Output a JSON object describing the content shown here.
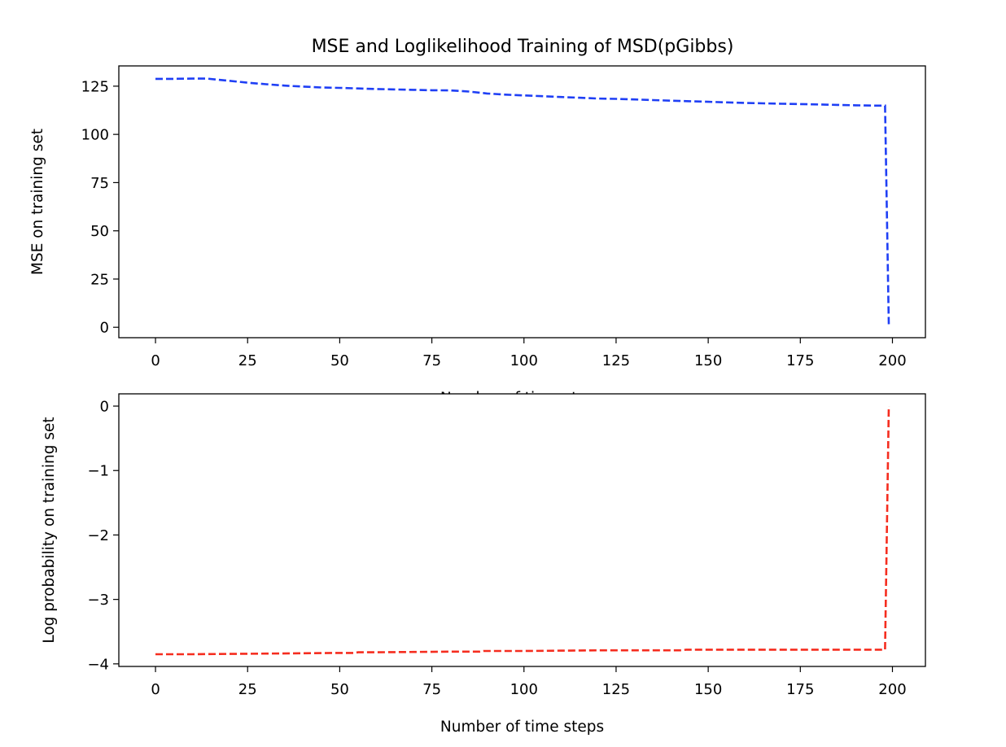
{
  "title": "MSE and Loglikelihood Training of MSD(pGibbs)",
  "chart_data": [
    {
      "type": "line",
      "xlabel": "Number of time steps",
      "ylabel": "MSE on training set",
      "xlim": [
        -9.95,
        208.95
      ],
      "ylim": [
        -5.4,
        135.5
      ],
      "xticks": [
        0,
        25,
        50,
        75,
        100,
        125,
        150,
        175,
        200
      ],
      "yticks": [
        0,
        25,
        50,
        75,
        100,
        125
      ],
      "grid": false,
      "series": [
        {
          "color": "#1f3ff5",
          "style": "dashed",
          "x": [
            0,
            5,
            10,
            14,
            20,
            25,
            30,
            35,
            40,
            45,
            50,
            55,
            60,
            65,
            70,
            75,
            80,
            85,
            90,
            95,
            100,
            105,
            110,
            115,
            120,
            125,
            130,
            135,
            140,
            145,
            150,
            155,
            160,
            165,
            170,
            175,
            180,
            185,
            190,
            195,
            198,
            199
          ],
          "y": [
            128.8,
            128.8,
            128.9,
            128.9,
            127.8,
            126.8,
            126.0,
            125.3,
            124.8,
            124.3,
            124.1,
            123.8,
            123.5,
            123.3,
            123.1,
            122.9,
            122.8,
            122.2,
            121.2,
            120.6,
            120.2,
            119.8,
            119.4,
            119.0,
            118.6,
            118.4,
            118.1,
            117.8,
            117.5,
            117.2,
            116.9,
            116.6,
            116.3,
            116.1,
            115.9,
            115.7,
            115.5,
            115.3,
            115.1,
            114.9,
            114.9,
            1.5
          ]
        }
      ]
    },
    {
      "type": "line",
      "xlabel": "Number of time steps",
      "ylabel": "Log probability on training set",
      "xlim": [
        -9.95,
        208.95
      ],
      "ylim": [
        -4.04,
        0.19
      ],
      "xticks": [
        0,
        25,
        50,
        75,
        100,
        125,
        150,
        175,
        200
      ],
      "yticks": [
        0,
        -1,
        -2,
        -3,
        -4
      ],
      "grid": false,
      "series": [
        {
          "color": "#f52d1f",
          "style": "dashed",
          "x": [
            0,
            10,
            20,
            30,
            40,
            50,
            54,
            55,
            60,
            70,
            80,
            88,
            89,
            100,
            110,
            120,
            130,
            140,
            143,
            144,
            155,
            165,
            175,
            185,
            195,
            198,
            199
          ],
          "y": [
            -3.85,
            -3.85,
            -3.845,
            -3.84,
            -3.835,
            -3.83,
            -3.83,
            -3.82,
            -3.82,
            -3.815,
            -3.81,
            -3.81,
            -3.8,
            -3.8,
            -3.795,
            -3.79,
            -3.79,
            -3.79,
            -3.79,
            -3.78,
            -3.78,
            -3.78,
            -3.78,
            -3.78,
            -3.78,
            -3.78,
            0.0
          ]
        }
      ]
    }
  ]
}
